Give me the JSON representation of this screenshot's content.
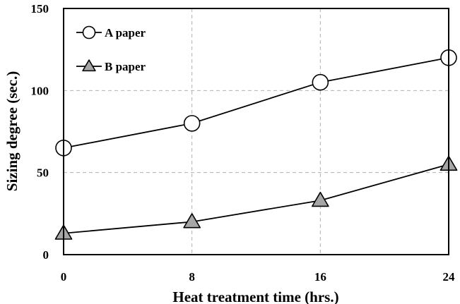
{
  "chart_data": {
    "type": "line",
    "title": "",
    "xlabel": "Heat treatment time (hrs.)",
    "ylabel": "Sizing degree (sec.)",
    "x": [
      0,
      8,
      16,
      24
    ],
    "xticks": [
      "0",
      "8",
      "16",
      "24"
    ],
    "yticks": [
      "0",
      "50",
      "100",
      "150"
    ],
    "xlim": [
      0,
      24
    ],
    "ylim": [
      0,
      150
    ],
    "grid": true,
    "legend_position": "top-left",
    "series": [
      {
        "name": "A paper",
        "marker": "circle",
        "marker_fill": "#ffffff",
        "values": [
          65,
          80,
          105,
          120
        ]
      },
      {
        "name": "B paper",
        "marker": "triangle",
        "marker_fill": "#a6a6a6",
        "values": [
          13,
          20,
          33,
          55
        ]
      }
    ]
  }
}
